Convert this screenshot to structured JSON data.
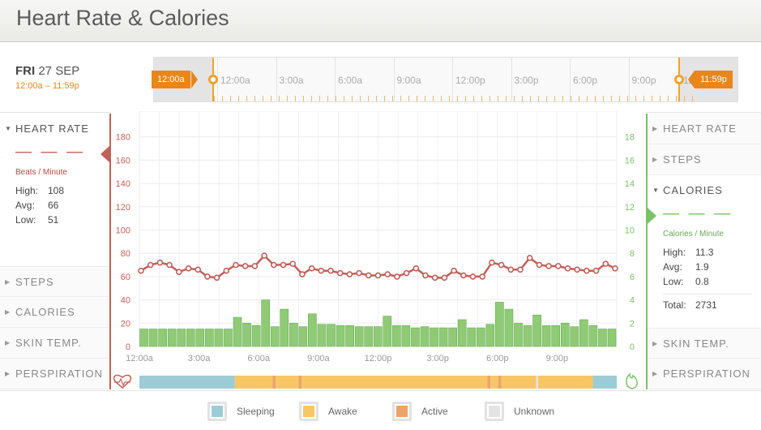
{
  "header": {
    "title": "Heart Rate & Calories"
  },
  "date": {
    "day_bold": "FRI",
    "day_rest": "27 SEP",
    "range": "12:00a – 11:59p"
  },
  "timeline": {
    "labels": [
      "12:00a",
      "3:00a",
      "6:00a",
      "9:00a",
      "12:00p",
      "3:00p",
      "6:00p",
      "9:00p"
    ],
    "start_label": "12:00a",
    "end_label": "11:59p",
    "partial_label": "12",
    "accent": "#e8861a"
  },
  "left_panel": {
    "active": {
      "label": "HEART RATE",
      "dashes": "— — —",
      "unit": "Beats / Minute",
      "stats": [
        {
          "key": "High:",
          "value": "108"
        },
        {
          "key": "Avg:",
          "value": "66"
        },
        {
          "key": "Low:",
          "value": "51"
        }
      ],
      "color": "#c0605a"
    },
    "items": [
      "STEPS",
      "CALORIES",
      "SKIN TEMP.",
      "PERSPIRATION"
    ]
  },
  "right_panel": {
    "items_top": [
      "HEART RATE",
      "STEPS"
    ],
    "active": {
      "label": "CALORIES",
      "dashes": "— — —",
      "unit": "Calories / Minute",
      "stats": [
        {
          "key": "High:",
          "value": "11.3"
        },
        {
          "key": "Avg:",
          "value": "1.9"
        },
        {
          "key": "Low:",
          "value": "0.8"
        }
      ],
      "total_key": "Total:",
      "total_value": "2731",
      "color": "#7cc06a"
    },
    "items_bottom": [
      "SKIN TEMP.",
      "PERSPIRATION"
    ]
  },
  "legend": [
    {
      "label": "Sleeping",
      "color": "#9dccd6"
    },
    {
      "label": "Awake",
      "color": "#f7c765"
    },
    {
      "label": "Active",
      "color": "#eba46a"
    },
    {
      "label": "Unknown",
      "color": "#e3e3e3"
    }
  ],
  "chart_data": {
    "type": "bar",
    "x_tick_labels": [
      "12:00a",
      "3:00a",
      "6:00a",
      "9:00a",
      "12:00p",
      "3:00p",
      "6:00p",
      "9:00p"
    ],
    "left_axis": {
      "ylim": [
        0,
        200
      ],
      "ticks": [
        0,
        20,
        40,
        60,
        80,
        100,
        120,
        140,
        160,
        180
      ],
      "color": "#c0605a"
    },
    "right_axis": {
      "ylim": [
        0,
        20
      ],
      "ticks": [
        0,
        2,
        4,
        6,
        8,
        10,
        12,
        14,
        16,
        18
      ],
      "color": "#7cc06a"
    },
    "heart_rate": [
      65,
      70,
      72,
      70,
      64,
      67,
      66,
      60,
      59,
      65,
      70,
      69,
      69,
      78,
      70,
      70,
      71,
      62,
      67,
      65,
      65,
      63,
      62,
      63,
      61,
      61,
      62,
      60,
      63,
      67,
      61,
      59,
      59,
      65,
      61,
      60,
      60,
      72,
      70,
      66,
      66,
      76,
      70,
      69,
      69,
      67,
      66,
      65,
      65,
      71,
      67
    ],
    "calories": [
      1.5,
      1.5,
      1.5,
      1.5,
      1.5,
      1.5,
      1.5,
      1.5,
      1.5,
      1.5,
      2.5,
      2.0,
      1.8,
      4.0,
      1.7,
      3.2,
      2.0,
      1.7,
      2.8,
      1.9,
      1.9,
      1.8,
      1.8,
      1.7,
      1.7,
      1.7,
      2.6,
      1.8,
      1.8,
      1.6,
      1.7,
      1.6,
      1.6,
      1.6,
      2.3,
      1.6,
      1.6,
      1.9,
      3.8,
      3.2,
      2.0,
      1.8,
      2.7,
      1.8,
      1.8,
      2.0,
      1.7,
      2.3,
      1.8,
      1.5,
      1.5
    ],
    "activity_strip": [
      {
        "state": "Sleeping",
        "from": 0,
        "to": 4.8
      },
      {
        "state": "Awake",
        "from": 4.8,
        "to": 6.7
      },
      {
        "state": "Active",
        "from": 6.7,
        "to": 6.85
      },
      {
        "state": "Awake",
        "from": 6.85,
        "to": 8.0
      },
      {
        "state": "Active",
        "from": 8.0,
        "to": 8.15
      },
      {
        "state": "Awake",
        "from": 8.15,
        "to": 17.5
      },
      {
        "state": "Active",
        "from": 17.5,
        "to": 17.65
      },
      {
        "state": "Awake",
        "from": 17.65,
        "to": 18.05
      },
      {
        "state": "Active",
        "from": 18.05,
        "to": 18.2
      },
      {
        "state": "Awake",
        "from": 18.2,
        "to": 19.95
      },
      {
        "state": "Unknown",
        "from": 19.95,
        "to": 20.05
      },
      {
        "state": "Awake",
        "from": 20.05,
        "to": 22.8
      },
      {
        "state": "Sleeping",
        "from": 22.8,
        "to": 24
      }
    ],
    "heart_rate_color": "#c0605a",
    "calories_color": "#8fcb74",
    "grid": true
  }
}
